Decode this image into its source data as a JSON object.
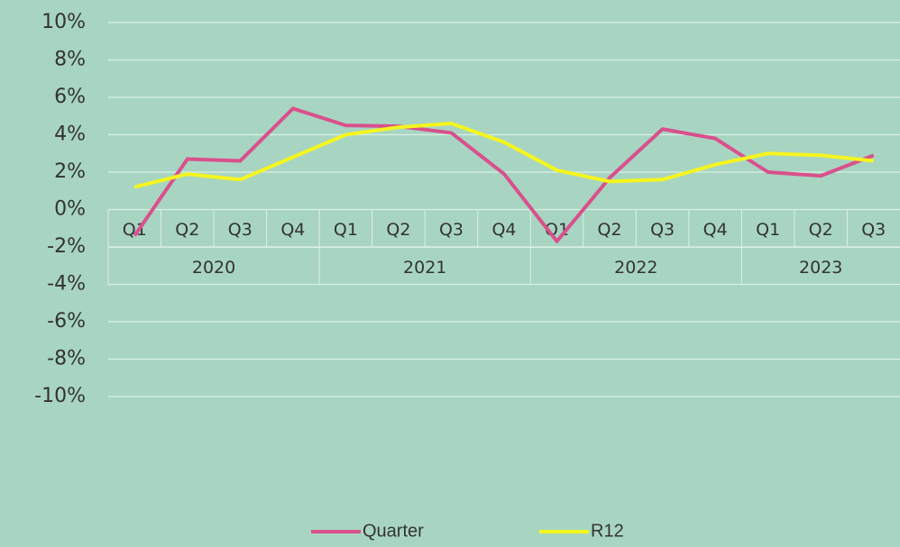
{
  "chart_data": {
    "type": "line",
    "category_groups": [
      {
        "label": "2020",
        "categories": [
          "Q1",
          "Q2",
          "Q3",
          "Q4"
        ]
      },
      {
        "label": "2021",
        "categories": [
          "Q1",
          "Q2",
          "Q3",
          "Q4"
        ]
      },
      {
        "label": "2022",
        "categories": [
          "Q1",
          "Q2",
          "Q3",
          "Q4"
        ]
      },
      {
        "label": "2023",
        "categories": [
          "Q1",
          "Q2",
          "Q3"
        ]
      }
    ],
    "series": [
      {
        "name": "Quarter",
        "color": "#d9508c",
        "values": [
          -1.4,
          2.7,
          2.6,
          5.4,
          4.5,
          4.45,
          4.1,
          1.9,
          -1.7,
          1.7,
          4.3,
          3.8,
          2.0,
          1.8,
          2.9
        ]
      },
      {
        "name": "R12",
        "color": "#f5f51e",
        "values": [
          1.2,
          1.9,
          1.6,
          2.8,
          4.0,
          4.4,
          4.6,
          3.6,
          2.1,
          1.5,
          1.6,
          2.4,
          3.0,
          2.9,
          2.6
        ]
      }
    ],
    "ylim": [
      -10,
      10
    ],
    "yticks": [
      {
        "value": -10,
        "label": "-10%"
      },
      {
        "value": -8,
        "label": "-8%"
      },
      {
        "value": -6,
        "label": "-6%"
      },
      {
        "value": -4,
        "label": "-4%"
      },
      {
        "value": -2,
        "label": "-2%"
      },
      {
        "value": 0,
        "label": "0%"
      },
      {
        "value": 2,
        "label": "2%"
      },
      {
        "value": 4,
        "label": "4%"
      },
      {
        "value": 6,
        "label": "6%"
      },
      {
        "value": 8,
        "label": "8%"
      },
      {
        "value": 10,
        "label": "10%"
      }
    ],
    "grid": true,
    "legend": "bottom"
  }
}
